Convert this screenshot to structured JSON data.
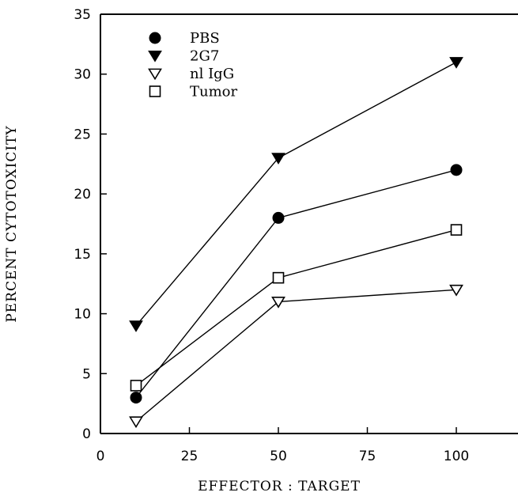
{
  "chart_data": {
    "type": "line",
    "title": "",
    "xlabel": "EFFECTOR : TARGET",
    "ylabel": "PERCENT CYTOTOXICITY",
    "xlim": [
      0,
      110
    ],
    "ylim": [
      0,
      35
    ],
    "xticks": [
      0,
      25,
      50,
      75,
      100
    ],
    "yticks": [
      0,
      5,
      10,
      15,
      20,
      25,
      30,
      35
    ],
    "grid": false,
    "legend_position": "top-left",
    "x": [
      10,
      50,
      100
    ],
    "series": [
      {
        "name": "PBS",
        "marker": "filled-circle",
        "values": [
          3,
          18,
          22
        ]
      },
      {
        "name": "2G7",
        "marker": "filled-triangle-down",
        "values": [
          9,
          23,
          31
        ]
      },
      {
        "name": "nl IgG",
        "marker": "open-triangle-down",
        "values": [
          1,
          11,
          12
        ]
      },
      {
        "name": "Tumor",
        "marker": "open-square",
        "values": [
          4,
          13,
          17
        ]
      }
    ]
  }
}
